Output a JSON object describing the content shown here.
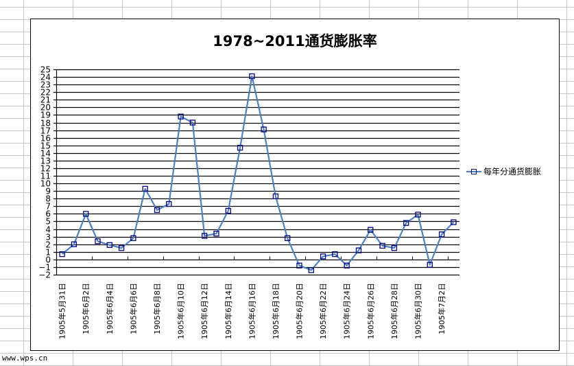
{
  "app": {
    "watermark": "www.wps.cn"
  },
  "chart": {
    "title": "1978~2011通货膨胀率",
    "legend_label": "每年分通货膨胀",
    "line_color": "#4f81bd",
    "marker_color": "#000080"
  },
  "chart_data": {
    "type": "line",
    "title": "1978~2011通货膨胀率",
    "xlabel": "",
    "ylabel": "",
    "ylim": [
      -2,
      25
    ],
    "y_ticks": [
      -2,
      -1,
      0,
      1,
      2,
      3,
      4,
      5,
      6,
      7,
      8,
      9,
      10,
      11,
      12,
      13,
      14,
      15,
      16,
      17,
      18,
      19,
      20,
      21,
      22,
      23,
      24,
      25
    ],
    "grid": true,
    "legend_position": "right",
    "x_tick_labels": [
      "1905年5月31日",
      "1905年6月2日",
      "1905年6月4日",
      "1905年6月6日",
      "1905年6月8日",
      "1905年6月10日",
      "1905年6月12日",
      "1905年6月14日",
      "1905年6月16日",
      "1905年6月18日",
      "1905年6月20日",
      "1905年6月22日",
      "1905年6月24日",
      "1905年6月26日",
      "1905年6月28日",
      "1905年6月30日",
      "1905年7月2日"
    ],
    "series": [
      {
        "name": "每年分通货膨胀",
        "values": [
          0.7,
          2.0,
          6.0,
          2.4,
          1.9,
          1.5,
          2.8,
          9.3,
          6.5,
          7.3,
          18.8,
          18.0,
          3.1,
          3.4,
          6.4,
          14.7,
          24.1,
          17.1,
          8.3,
          2.8,
          -0.8,
          -1.4,
          0.4,
          0.7,
          -0.8,
          1.2,
          3.9,
          1.8,
          1.5,
          4.8,
          5.9,
          -0.7,
          3.3,
          4.9
        ]
      }
    ]
  }
}
